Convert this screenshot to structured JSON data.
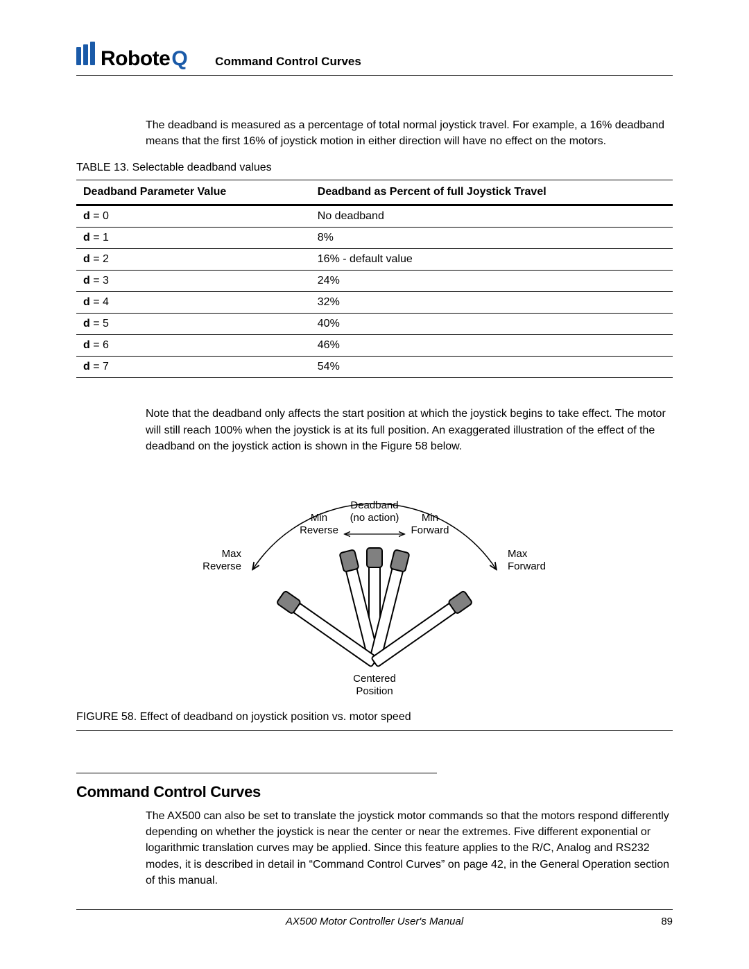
{
  "header": {
    "logo_text_main": "Robote",
    "logo_text_accent": "Q",
    "section_title": "Command Control Curves"
  },
  "intro_paragraph": "The deadband is measured as a percentage of total normal joystick travel. For example, a 16% deadband means that the first 16% of joystick motion in either direction will have no effect on the motors.",
  "table": {
    "caption": "TABLE 13. Selectable deadband values",
    "columns": [
      "Deadband Parameter Value",
      "Deadband as Percent of full Joystick Travel"
    ],
    "rows": [
      {
        "param_var": "d",
        "param_val": "0",
        "percent": "No deadband"
      },
      {
        "param_var": "d",
        "param_val": "1",
        "percent": "8%"
      },
      {
        "param_var": "d",
        "param_val": "2",
        "percent": "16% - default value"
      },
      {
        "param_var": "d",
        "param_val": "3",
        "percent": "24%"
      },
      {
        "param_var": "d",
        "param_val": "4",
        "percent": "32%"
      },
      {
        "param_var": "d",
        "param_val": "5",
        "percent": "40%"
      },
      {
        "param_var": "d",
        "param_val": "6",
        "percent": "46%"
      },
      {
        "param_var": "d",
        "param_val": "7",
        "percent": "54%"
      }
    ]
  },
  "note_paragraph": "Note that the deadband only affects the start position at which the joystick begins to take effect. The motor will still reach 100% when the joystick is at its full position. An exaggerated illustration of the effect of the deadband on the joystick action is shown in the Figure 58 below.",
  "figure": {
    "caption": "FIGURE 58.  Effect of deadband on joystick position vs. motor speed",
    "labels": {
      "deadband_line1": "Deadband",
      "deadband_line2": "(no action)",
      "min_reverse_line1": "Min",
      "min_reverse_line2": "Reverse",
      "min_forward_line1": "Min",
      "min_forward_line2": "Forward",
      "max_reverse_line1": "Max",
      "max_reverse_line2": "Reverse",
      "max_forward_line1": "Max",
      "max_forward_line2": "Forward",
      "centered_line1": "Centered",
      "centered_line2": "Position"
    },
    "style": {
      "stroke": "#000000",
      "fill_stick": "#ffffff",
      "fill_ball": "#808080",
      "deadband_arrow_stroke": "#000000",
      "text_color": "#000000",
      "font_size": 15
    }
  },
  "section": {
    "heading": "Command Control Curves",
    "paragraph": "The AX500 can also be set to translate the joystick motor commands so that the motors respond differently depending on whether the joystick is near the center or near the extremes. Five different exponential or logarithmic translation curves may be applied. Since this feature applies to the R/C, Analog and RS232 modes, it is described in detail in “Command Control Curves” on page 42, in the General Operation section of this manual."
  },
  "footer": {
    "manual_title": "AX500 Motor Controller User's Manual",
    "page_number": "89"
  }
}
